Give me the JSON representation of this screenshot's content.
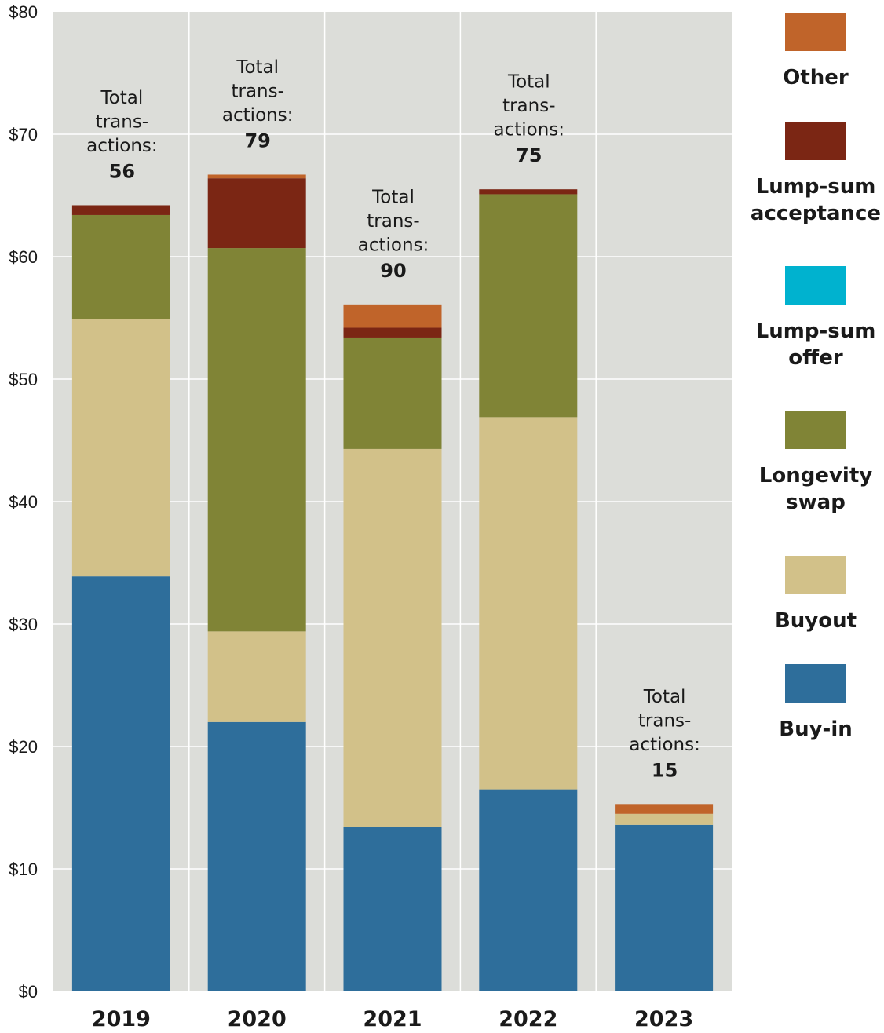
{
  "chart_data": {
    "type": "bar",
    "stacked": true,
    "categories": [
      "2019",
      "2020",
      "2021",
      "2022",
      "2023"
    ],
    "ylim": [
      0,
      80
    ],
    "yticks": [
      "$0",
      "$10",
      "$20",
      "$30",
      "$40",
      "$50",
      "$60",
      "$70",
      "$80"
    ],
    "grid": true,
    "legend_position": "right",
    "series": [
      {
        "name": "Buy-in",
        "color": "#2e6e9b",
        "values": [
          33.9,
          22.0,
          13.4,
          16.5,
          13.6
        ]
      },
      {
        "name": "Buyout",
        "color": "#d2c189",
        "values": [
          21.0,
          7.4,
          30.9,
          30.4,
          0.9
        ]
      },
      {
        "name": "Longevity swap",
        "color": "#808436",
        "values": [
          8.5,
          31.3,
          9.1,
          18.2,
          0
        ]
      },
      {
        "name": "Lump-sum offer",
        "color": "#00b2cf",
        "values": [
          0,
          0,
          0,
          0,
          0
        ]
      },
      {
        "name": "Lump-sum acceptance",
        "color": "#7b2614",
        "values": [
          0.8,
          5.7,
          0.8,
          0.4,
          0
        ]
      },
      {
        "name": "Other",
        "color": "#c0642a",
        "values": [
          0,
          0.3,
          1.9,
          0,
          0.8
        ]
      }
    ],
    "annotations": [
      {
        "category": "2019",
        "lines": [
          "Total",
          "trans-",
          "actions:"
        ],
        "value": "56"
      },
      {
        "category": "2020",
        "lines": [
          "Total",
          "trans-",
          "actions:"
        ],
        "value": "79"
      },
      {
        "category": "2021",
        "lines": [
          "Total",
          "trans-",
          "actions:"
        ],
        "value": "90"
      },
      {
        "category": "2022",
        "lines": [
          "Total",
          "trans-",
          "actions:"
        ],
        "value": "75"
      },
      {
        "category": "2023",
        "lines": [
          "Total",
          "trans-",
          "actions:"
        ],
        "value": "15"
      }
    ],
    "legend": [
      {
        "label_lines": [
          "Other"
        ],
        "color": "#c0642a"
      },
      {
        "label_lines": [
          "Lump-sum",
          "acceptance"
        ],
        "color": "#7b2614"
      },
      {
        "label_lines": [
          "Lump-sum",
          "offer"
        ],
        "color": "#00b2cf"
      },
      {
        "label_lines": [
          "Longevity",
          "swap"
        ],
        "color": "#808436"
      },
      {
        "label_lines": [
          "Buyout"
        ],
        "color": "#d2c189"
      },
      {
        "label_lines": [
          "Buy-in"
        ],
        "color": "#2e6e9b"
      }
    ],
    "plot_background": "#dcddd9",
    "grid_color": "#ffffff"
  }
}
